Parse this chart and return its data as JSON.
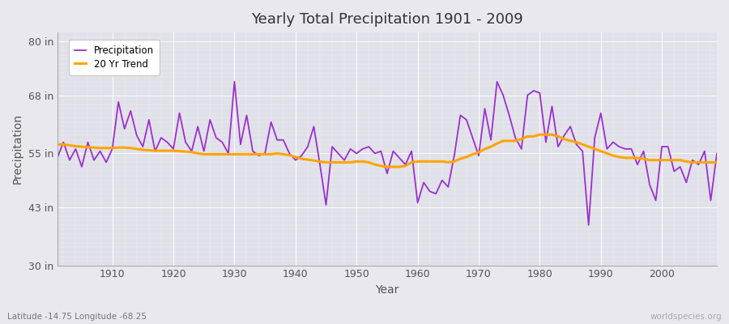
{
  "title": "Yearly Total Precipitation 1901 - 2009",
  "xlabel": "Year",
  "ylabel": "Precipitation",
  "subtitle": "Latitude -14.75 Longitude -68.25",
  "watermark": "worldspecies.org",
  "ylim": [
    30,
    82
  ],
  "yticks": [
    30,
    43,
    55,
    68,
    80
  ],
  "ytick_labels": [
    "30 in",
    "43 in",
    "55 in",
    "68 in",
    "80 in"
  ],
  "xlim": [
    1901,
    2009
  ],
  "xticks": [
    1910,
    1920,
    1930,
    1940,
    1950,
    1960,
    1970,
    1980,
    1990,
    2000
  ],
  "precip_color": "#9B30D0",
  "trend_color": "#FFA500",
  "bg_color": "#E8E8EE",
  "plot_bg_color": "#E0E0E8",
  "grid_color": "#FFFFFF",
  "legend_entries": [
    "Precipitation",
    "20 Yr Trend"
  ],
  "years": [
    1901,
    1902,
    1903,
    1904,
    1905,
    1906,
    1907,
    1908,
    1909,
    1910,
    1911,
    1912,
    1913,
    1914,
    1915,
    1916,
    1917,
    1918,
    1919,
    1920,
    1921,
    1922,
    1923,
    1924,
    1925,
    1926,
    1927,
    1928,
    1929,
    1930,
    1931,
    1932,
    1933,
    1934,
    1935,
    1936,
    1937,
    1938,
    1939,
    1940,
    1941,
    1942,
    1943,
    1944,
    1945,
    1946,
    1947,
    1948,
    1949,
    1950,
    1951,
    1952,
    1953,
    1954,
    1955,
    1956,
    1957,
    1958,
    1959,
    1960,
    1961,
    1962,
    1963,
    1964,
    1965,
    1966,
    1967,
    1968,
    1969,
    1970,
    1971,
    1972,
    1973,
    1974,
    1975,
    1976,
    1977,
    1978,
    1979,
    1980,
    1981,
    1982,
    1983,
    1984,
    1985,
    1986,
    1987,
    1988,
    1989,
    1990,
    1991,
    1992,
    1993,
    1994,
    1995,
    1996,
    1997,
    1998,
    1999,
    2000,
    2001,
    2002,
    2003,
    2004,
    2005,
    2006,
    2007,
    2008,
    2009
  ],
  "precip": [
    54.0,
    57.5,
    53.5,
    56.0,
    52.0,
    57.5,
    53.5,
    55.5,
    53.0,
    56.0,
    66.5,
    60.5,
    64.5,
    59.0,
    56.5,
    62.5,
    55.5,
    58.5,
    57.5,
    56.0,
    64.0,
    57.5,
    55.5,
    61.0,
    55.5,
    62.5,
    58.5,
    57.5,
    55.0,
    71.0,
    57.0,
    63.5,
    55.5,
    54.5,
    55.0,
    62.0,
    58.0,
    58.0,
    55.0,
    53.5,
    54.5,
    56.5,
    61.0,
    52.5,
    43.5,
    56.5,
    55.0,
    53.5,
    56.0,
    55.0,
    56.0,
    56.5,
    55.0,
    55.5,
    50.5,
    55.5,
    54.0,
    52.5,
    55.5,
    44.0,
    48.5,
    46.5,
    46.0,
    49.0,
    47.5,
    54.5,
    63.5,
    62.5,
    58.5,
    54.5,
    65.0,
    58.0,
    71.0,
    68.0,
    63.5,
    58.5,
    56.0,
    68.0,
    69.0,
    68.5,
    57.5,
    65.5,
    56.5,
    59.0,
    61.0,
    57.0,
    55.5,
    39.0,
    58.5,
    64.0,
    56.0,
    57.5,
    56.5,
    56.0,
    56.0,
    52.5,
    55.5,
    48.0,
    44.5,
    56.5,
    56.5,
    51.0,
    52.0,
    48.5,
    53.5,
    52.5,
    55.5,
    44.5,
    55.0
  ],
  "trend": [
    57.0,
    57.0,
    56.8,
    56.6,
    56.5,
    56.4,
    56.3,
    56.2,
    56.2,
    56.2,
    56.3,
    56.3,
    56.2,
    56.0,
    55.8,
    55.7,
    55.6,
    55.6,
    55.6,
    55.6,
    55.5,
    55.4,
    55.3,
    55.0,
    54.8,
    54.8,
    54.8,
    54.8,
    54.8,
    54.8,
    54.8,
    54.8,
    54.8,
    54.8,
    54.8,
    54.8,
    55.0,
    54.8,
    54.6,
    54.2,
    53.8,
    53.6,
    53.4,
    53.2,
    53.0,
    53.0,
    53.0,
    53.0,
    53.0,
    53.2,
    53.2,
    53.0,
    52.5,
    52.2,
    52.0,
    52.0,
    52.0,
    52.2,
    53.0,
    53.2,
    53.2,
    53.2,
    53.2,
    53.2,
    53.0,
    53.2,
    53.8,
    54.2,
    54.8,
    55.2,
    56.0,
    56.5,
    57.2,
    57.8,
    57.8,
    57.8,
    58.2,
    58.8,
    58.8,
    59.2,
    59.2,
    59.2,
    58.8,
    58.2,
    57.8,
    57.5,
    57.0,
    56.5,
    56.0,
    55.5,
    55.0,
    54.5,
    54.2,
    54.0,
    54.0,
    54.0,
    53.8,
    53.5,
    53.5,
    53.5,
    53.5,
    53.5,
    53.5,
    53.2,
    53.0,
    53.0,
    53.0,
    53.0,
    53.0
  ]
}
